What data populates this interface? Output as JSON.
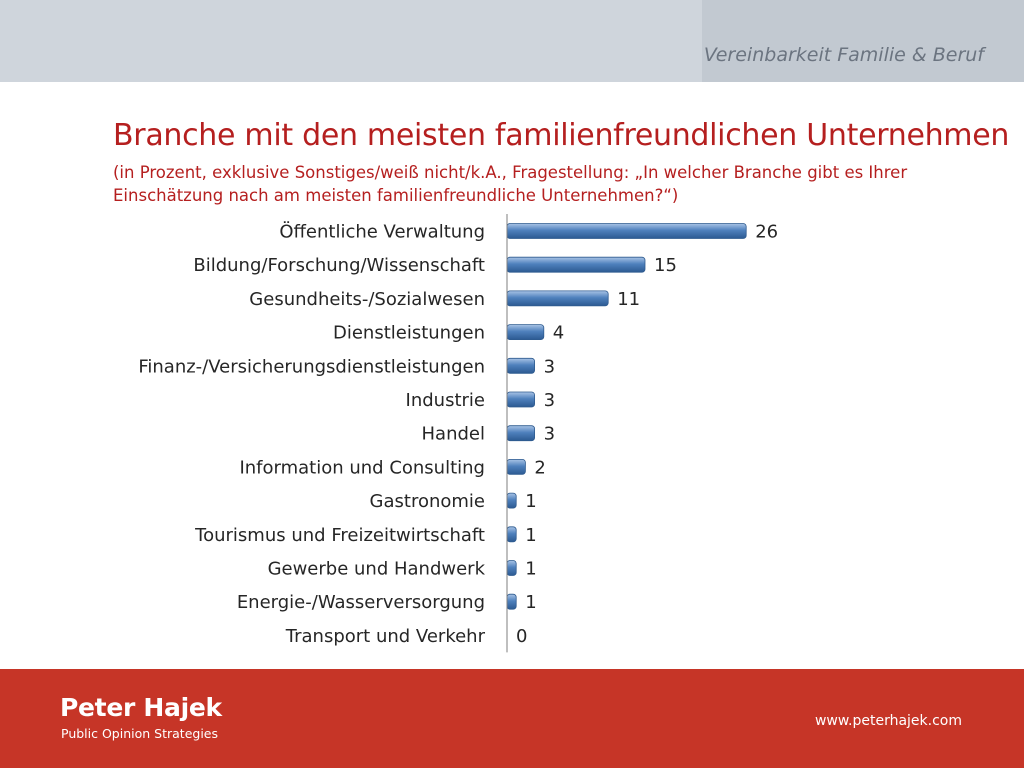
{
  "header": {
    "section_title": "Vereinbarkeit Familie & Beruf"
  },
  "slide": {
    "title": "Branche mit den meisten familienfreundlichen Unternehmen",
    "subtitle": "(in Prozent, exklusive Sonstiges/weiß nicht/k.A., Fragestellung: „In welcher Branche gibt es Ihrer Einschätzung nach am meisten familienfreundliche Unternehmen?“)"
  },
  "chart_data": {
    "type": "bar",
    "orientation": "horizontal",
    "categories": [
      "Öffentliche Verwaltung",
      "Bildung/Forschung/Wissenschaft",
      "Gesundheits-/Sozialwesen",
      "Dienstleistungen",
      "Finanz-/Versicherungsdienstleistungen",
      "Industrie",
      "Handel",
      "Information und Consulting",
      "Gastronomie",
      "Tourismus und Freizeitwirtschaft",
      "Gewerbe und Handwerk",
      "Energie-/Wasserversorgung",
      "Transport und Verkehr"
    ],
    "values": [
      26,
      15,
      11,
      4,
      3,
      3,
      3,
      2,
      1,
      1,
      1,
      1,
      0
    ],
    "data_labels": true,
    "bar_color": "#4f81bd",
    "grid": false,
    "legend": "none"
  },
  "footer": {
    "brand_name": "Peter Hajek",
    "brand_sub": "Public Opinion Strategies",
    "website": "www.peterhajek.com"
  },
  "colors": {
    "accent_red": "#b51f1f",
    "footer_red": "#c63527",
    "header_gray": "#cfd5dc"
  }
}
